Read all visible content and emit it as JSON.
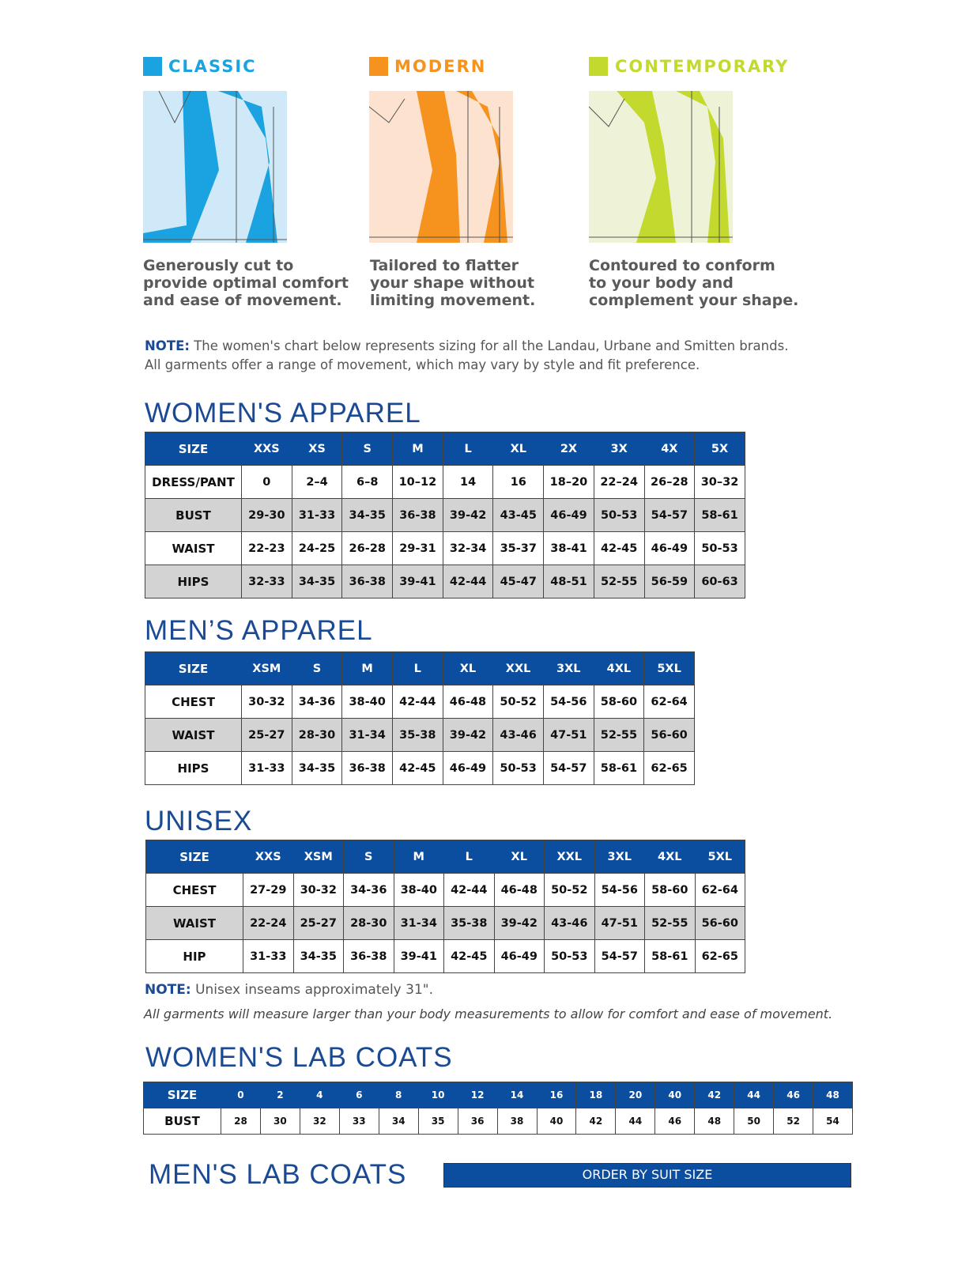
{
  "fits": [
    {
      "name": "CLASSIC",
      "description": [
        "Generously cut to",
        "provide optimal comfort",
        "and ease of movement."
      ]
    },
    {
      "name": "MODERN",
      "description": [
        "Tailored to flatter",
        "your shape without",
        "limiting movement."
      ]
    },
    {
      "name": "CONTEMPORARY",
      "description": [
        "Contoured to conform",
        "to your body and",
        "complement your shape."
      ]
    }
  ],
  "note": {
    "label": "NOTE:",
    "text": "The women's chart below represents sizing for all the Landau, Urbane and Smitten brands. All garments offer a range of movement, which may vary by style and fit preference."
  },
  "womens_apparel": {
    "title": "WOMEN'S APPAREL",
    "header": [
      "SIZE",
      "XXS",
      "XS",
      "S",
      "M",
      "L",
      "XL",
      "2X",
      "3X",
      "4X",
      "5X"
    ],
    "rows": [
      [
        "DRESS/PANT",
        "0",
        "2–4",
        "6–8",
        "10–12",
        "14",
        "16",
        "18–20",
        "22–24",
        "26–28",
        "30–32"
      ],
      [
        "BUST",
        "29-30",
        "31-33",
        "34-35",
        "36-38",
        "39-42",
        "43-45",
        "46-49",
        "50-53",
        "54-57",
        "58-61"
      ],
      [
        "WAIST",
        "22-23",
        "24-25",
        "26-28",
        "29-31",
        "32-34",
        "35-37",
        "38-41",
        "42-45",
        "46-49",
        "50-53"
      ],
      [
        "HIPS",
        "32-33",
        "34-35",
        "36-38",
        "39-41",
        "42-44",
        "45-47",
        "48-51",
        "52-55",
        "56-59",
        "60-63"
      ]
    ]
  },
  "mens_apparel": {
    "title": "MEN’S APPAREL",
    "header": [
      "SIZE",
      "XSM",
      "S",
      "M",
      "L",
      "XL",
      "XXL",
      "3XL",
      "4XL",
      "5XL"
    ],
    "rows": [
      [
        "CHEST",
        "30-32",
        "34-36",
        "38-40",
        "42-44",
        "46-48",
        "50-52",
        "54-56",
        "58-60",
        "62-64"
      ],
      [
        "WAIST",
        "25-27",
        "28-30",
        "31-34",
        "35-38",
        "39-42",
        "43-46",
        "47-51",
        "52-55",
        "56-60"
      ],
      [
        "HIPS",
        "31-33",
        "34-35",
        "36-38",
        "42-45",
        "46-49",
        "50-53",
        "54-57",
        "58-61",
        "62-65"
      ]
    ]
  },
  "unisex": {
    "title": "UNISEX",
    "header": [
      "SIZE",
      "XXS",
      "XSM",
      "S",
      "M",
      "L",
      "XL",
      "XXL",
      "3XL",
      "4XL",
      "5XL"
    ],
    "rows": [
      [
        "CHEST",
        "27-29",
        "30-32",
        "34-36",
        "38-40",
        "42-44",
        "46-48",
        "50-52",
        "54-56",
        "58-60",
        "62-64"
      ],
      [
        "WAIST",
        "22-24",
        "25-27",
        "28-30",
        "31-34",
        "35-38",
        "39-42",
        "43-46",
        "47-51",
        "52-55",
        "56-60"
      ],
      [
        "HIP",
        "31-33",
        "34-35",
        "36-38",
        "39-41",
        "42-45",
        "46-49",
        "50-53",
        "54-57",
        "58-61",
        "62-65"
      ]
    ]
  },
  "unisex_note": {
    "label": "NOTE:",
    "text": "Unisex inseams approximately 31\"."
  },
  "disclaimer": "All garments will measure larger than your body measurements to allow for comfort and ease of movement.",
  "womens_lab_coats": {
    "title": "WOMEN'S LAB COATS",
    "header": [
      "SIZE",
      "0",
      "2",
      "4",
      "6",
      "8",
      "10",
      "12",
      "14",
      "16",
      "18",
      "20",
      "40",
      "42",
      "44",
      "46",
      "48"
    ],
    "rows": [
      [
        "BUST",
        "28",
        "30",
        "32",
        "33",
        "34",
        "35",
        "36",
        "38",
        "40",
        "42",
        "44",
        "46",
        "48",
        "50",
        "52",
        "54"
      ]
    ]
  },
  "mens_lab_coats": {
    "title": "MEN'S LAB COATS",
    "banner": "ORDER BY SUIT SIZE"
  }
}
